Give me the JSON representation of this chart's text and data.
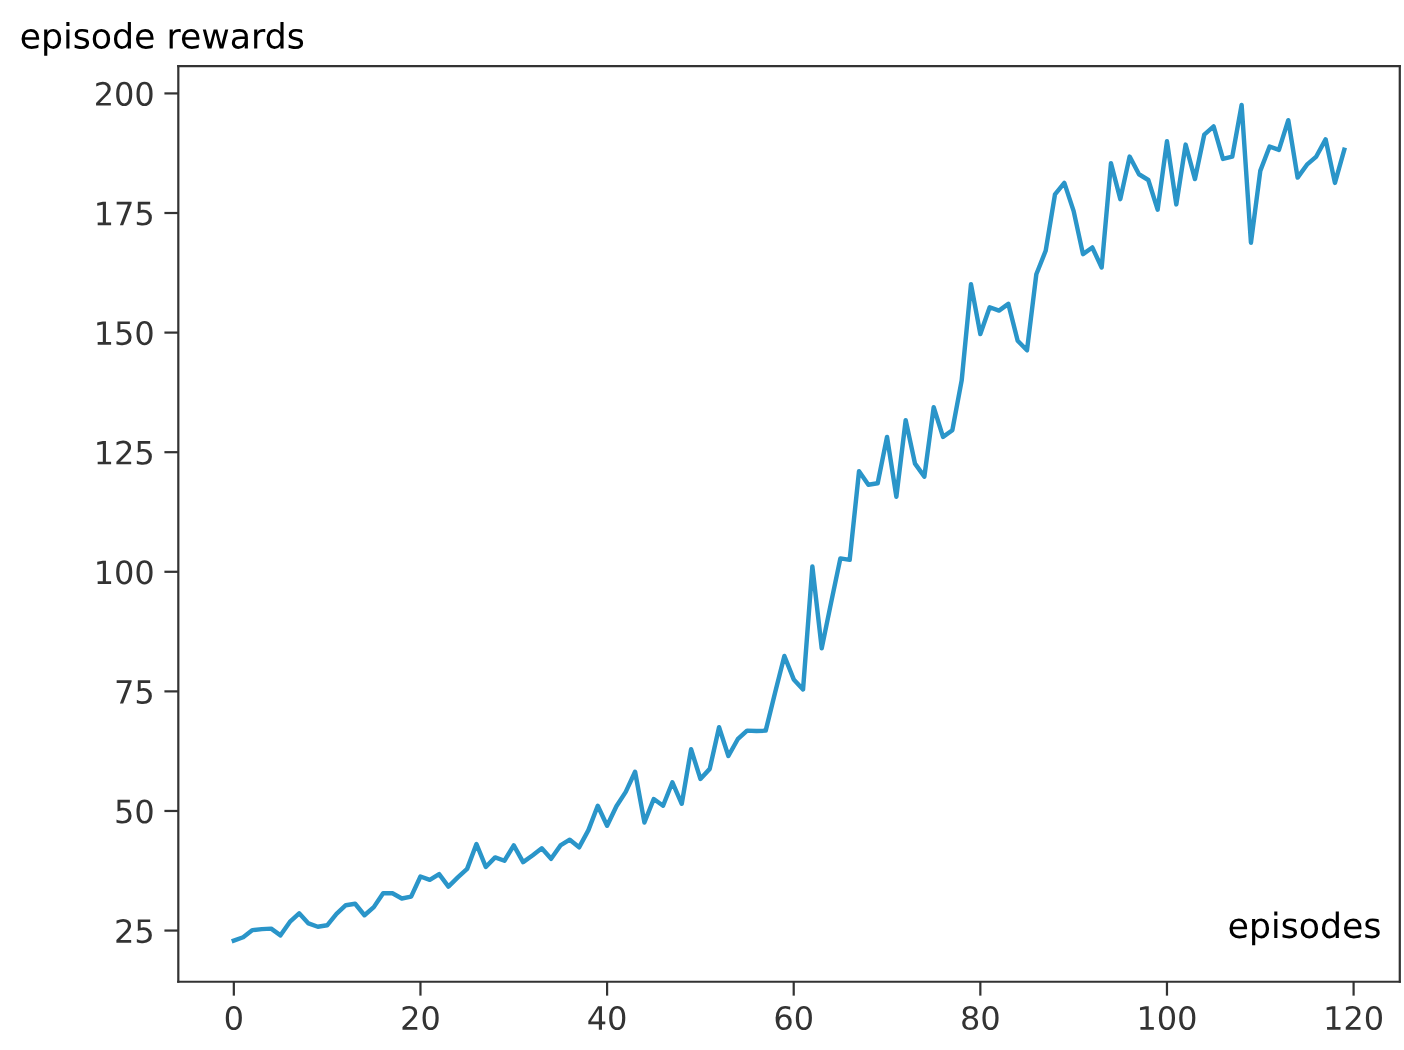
{
  "chart_data": {
    "type": "line",
    "ylabel": "episode rewards",
    "xlabel": "episodes",
    "color": "#2a95c9",
    "line_style": "solid",
    "x": [
      0,
      1,
      2,
      3,
      4,
      5,
      6,
      7,
      8,
      9,
      10,
      11,
      12,
      13,
      14,
      15,
      16,
      17,
      18,
      19,
      20,
      21,
      22,
      23,
      24,
      25,
      26,
      27,
      28,
      29,
      30,
      31,
      32,
      33,
      34,
      35,
      36,
      37,
      38,
      39,
      40,
      41,
      42,
      43,
      44,
      45,
      46,
      47,
      48,
      49,
      50,
      51,
      52,
      53,
      54,
      55,
      56,
      57,
      58,
      59,
      60,
      61,
      62,
      63,
      64,
      65,
      66,
      67,
      68,
      69,
      70,
      71,
      72,
      73,
      74,
      75,
      76,
      77,
      78,
      79,
      80,
      81,
      82,
      83,
      84,
      85,
      86,
      87,
      88,
      89,
      90,
      91,
      92,
      93,
      94,
      95,
      96,
      97,
      98,
      99,
      100,
      101,
      102,
      103,
      104,
      105,
      106,
      107,
      108,
      109,
      110,
      111,
      112,
      113,
      114,
      115,
      116,
      117,
      118,
      119
    ],
    "values": [
      22.9,
      23.6,
      25.1,
      25.3,
      25.4,
      24,
      26.8,
      28.6,
      26.5,
      25.8,
      26.1,
      28.5,
      30.3,
      30.6,
      28.2,
      29.9,
      32.8,
      32.8,
      31.7,
      32.1,
      36.3,
      35.6,
      36.8,
      34.2,
      36.1,
      37.9,
      43.1,
      38.3,
      40.3,
      39.6,
      42.8,
      39.3,
      40.7,
      42.2,
      40,
      42.8,
      44,
      42.4,
      46,
      51.1,
      46.9,
      51,
      54,
      58.2,
      47.6,
      52.5,
      51.1,
      56,
      51.5,
      62.9,
      56.7,
      58.8,
      67.5,
      61.5,
      65,
      66.8,
      66.7,
      66.8,
      74.7,
      82.4,
      77.5,
      75.4,
      101.1,
      84,
      93.5,
      102.8,
      102.5,
      121,
      118.2,
      118.5,
      128.2,
      115.7,
      131.7,
      122.6,
      119.9,
      134.4,
      128.2,
      129.6,
      140,
      160.1,
      149.7,
      155.3,
      154.6,
      156,
      148.3,
      146.3,
      162.2,
      167.1,
      178.9,
      181.3,
      175.4,
      166.4,
      167.8,
      163.6,
      185.4,
      177.9,
      186.8,
      183.1,
      181.9,
      175.7,
      190,
      176.8,
      189.3,
      182.1,
      191.4,
      193.1,
      186.3,
      186.8,
      197.6,
      168.8,
      183.8,
      188.9,
      188.2,
      194.4,
      182.4,
      185.1,
      186.8,
      190.4,
      181.3,
      188.2
    ],
    "xlim": [
      -5.95,
      124.95
    ],
    "ylim": [
      14.3,
      205.7
    ],
    "xticks": [
      0,
      20,
      40,
      60,
      80,
      100,
      120
    ],
    "yticks": [
      25,
      50,
      75,
      100,
      125,
      150,
      175,
      200
    ]
  }
}
